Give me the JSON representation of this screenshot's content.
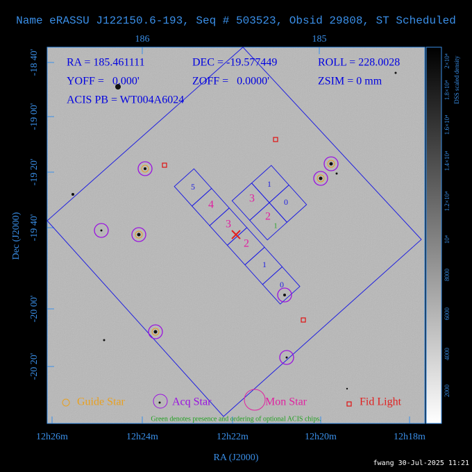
{
  "title": "Name eRASSU J122150.6-193, Seq # 503523, Obsid 29808, ST Scheduled",
  "info": {
    "ra": "RA = 185.461111",
    "dec": "DEC = -19.577449",
    "roll": "ROLL = 228.0028",
    "yoff": "YOFF =   0.000'",
    "zoff": "ZOFF =   0.0000'",
    "zsim": "ZSIM = 0 mm",
    "acis_pb": "ACIS PB = WT004A6024"
  },
  "axes": {
    "x_label": "RA (J2000)",
    "y_label": "Dec (J2000)",
    "x_ticks": [
      "12h26m",
      "12h24m",
      "12h22m",
      "12h20m",
      "12h18m"
    ],
    "top_ticks": [
      "186",
      "185"
    ],
    "y_ticks": [
      "-18 40'",
      "-19 00'",
      "-19 20'",
      "-19 40'",
      "-20 00'",
      "-20 20'"
    ]
  },
  "colorbar": {
    "label": "DSS scaled density",
    "ticks": [
      "2000",
      "4000",
      "6000",
      "8000",
      "10⁴",
      "1.2×10⁴",
      "1.4×10⁴",
      "1.6×10⁴",
      "1.8×10⁴",
      "2×10⁴"
    ]
  },
  "chips": {
    "s_array": [
      "5",
      "4",
      "3",
      "2",
      "1",
      "0"
    ],
    "i_array": [
      "1",
      "0",
      "3",
      "2"
    ],
    "optional": "1"
  },
  "legend": [
    "Guide Star",
    "Acq Star",
    "Mon Star",
    "Fid Light"
  ],
  "note": "Green denotes presence and ordering of optional ACIS chips.",
  "footer": "fwang 30-Jul-2025 11:21"
}
